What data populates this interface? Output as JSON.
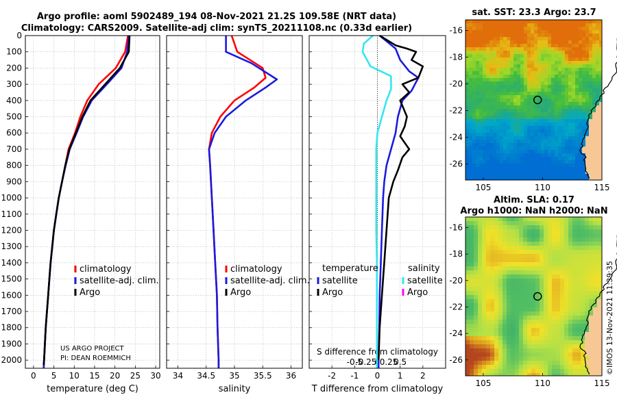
{
  "header": {
    "line1": "Argo profile: aoml 5902489_194 08-Nov-2021 21.2S 109.58E (NRT data)",
    "line2": "Climatology: CARS2009. Satellite-adj clim: synTS_20211108.nc (0.33d earlier)"
  },
  "depth_ticks": [
    0,
    100,
    200,
    300,
    400,
    500,
    600,
    700,
    800,
    900,
    1000,
    1100,
    1200,
    1300,
    1400,
    1500,
    1600,
    1700,
    1800,
    1900,
    2000
  ],
  "chart_data": [
    {
      "type": "line",
      "id": "temperature",
      "xlabel": "temperature (deg C)",
      "ylabel": "depth",
      "xlim": [
        -2,
        31
      ],
      "ylim": [
        2050,
        0
      ],
      "xticks": [
        0,
        5,
        10,
        15,
        20,
        25,
        30
      ],
      "grid": true,
      "legend": "middle-right",
      "series": [
        {
          "name": "climatology",
          "color": "#ff0000",
          "points": [
            [
              23.2,
              0
            ],
            [
              22.5,
              100
            ],
            [
              20.2,
              200
            ],
            [
              16.0,
              300
            ],
            [
              13.2,
              400
            ],
            [
              11.5,
              500
            ],
            [
              10.2,
              600
            ],
            [
              8.6,
              700
            ],
            [
              7.8,
              800
            ],
            [
              7.0,
              900
            ],
            [
              6.2,
              1000
            ],
            [
              5.6,
              1100
            ],
            [
              5.0,
              1200
            ],
            [
              4.6,
              1300
            ],
            [
              4.2,
              1400
            ],
            [
              3.9,
              1500
            ],
            [
              3.6,
              1600
            ],
            [
              3.3,
              1700
            ],
            [
              3.0,
              1800
            ],
            [
              2.8,
              1900
            ],
            [
              2.6,
              2000
            ],
            [
              2.5,
              2050
            ]
          ]
        },
        {
          "name": "satellite-adj. clim.",
          "color": "#1a1adf",
          "points": [
            [
              23.4,
              0
            ],
            [
              23.0,
              100
            ],
            [
              21.6,
              200
            ],
            [
              18.0,
              300
            ],
            [
              14.3,
              400
            ],
            [
              12.2,
              500
            ],
            [
              10.6,
              600
            ],
            [
              8.9,
              700
            ],
            [
              7.9,
              800
            ],
            [
              7.0,
              900
            ],
            [
              6.2,
              1000
            ],
            [
              5.6,
              1100
            ],
            [
              5.0,
              1200
            ],
            [
              4.6,
              1300
            ],
            [
              4.2,
              1400
            ],
            [
              3.9,
              1500
            ],
            [
              3.6,
              1600
            ],
            [
              3.3,
              1700
            ],
            [
              3.0,
              1800
            ],
            [
              2.8,
              1900
            ],
            [
              2.6,
              2000
            ],
            [
              2.5,
              2050
            ]
          ]
        },
        {
          "name": "Argo",
          "color": "#000000",
          "points": [
            [
              23.6,
              0
            ],
            [
              23.4,
              100
            ],
            [
              21.2,
              200
            ],
            [
              17.6,
              300
            ],
            [
              14.0,
              400
            ],
            [
              12.0,
              500
            ],
            [
              10.4,
              600
            ],
            [
              8.8,
              700
            ],
            [
              7.8,
              800
            ],
            [
              7.0,
              900
            ],
            [
              6.2,
              1000
            ],
            [
              5.6,
              1100
            ],
            [
              5.0,
              1200
            ],
            [
              4.6,
              1300
            ],
            [
              4.2,
              1400
            ],
            [
              3.9,
              1500
            ],
            [
              3.6,
              1600
            ],
            [
              3.3,
              1700
            ],
            [
              3.0,
              1800
            ],
            [
              2.8,
              1900
            ],
            [
              2.6,
              2000
            ],
            [
              2.5,
              2030
            ]
          ]
        }
      ],
      "annotations": [
        "US ARGO PROJECT",
        "PI: DEAN ROEMMICH"
      ]
    },
    {
      "type": "line",
      "id": "salinity",
      "xlabel": "salinity",
      "ylabel": "depth",
      "xlim": [
        33.8,
        36.2
      ],
      "ylim": [
        2050,
        0
      ],
      "xticks": [
        34,
        34.5,
        35,
        35.5,
        36
      ],
      "grid": true,
      "legend": "middle-right",
      "series": [
        {
          "name": "climatology",
          "color": "#ff0000",
          "points": [
            [
              34.95,
              0
            ],
            [
              35.05,
              100
            ],
            [
              35.5,
              200
            ],
            [
              35.55,
              260
            ],
            [
              35.35,
              320
            ],
            [
              35.0,
              400
            ],
            [
              34.75,
              500
            ],
            [
              34.6,
              600
            ],
            [
              34.55,
              700
            ],
            [
              34.57,
              800
            ],
            [
              34.6,
              1000
            ],
            [
              34.63,
              1200
            ],
            [
              34.66,
              1400
            ],
            [
              34.69,
              1600
            ],
            [
              34.7,
              1800
            ],
            [
              34.72,
              2000
            ],
            [
              34.72,
              2050
            ]
          ]
        },
        {
          "name": "satellite-adj. clim.",
          "color": "#1a1adf",
          "points": [
            [
              34.85,
              0
            ],
            [
              34.85,
              100
            ],
            [
              35.3,
              170
            ],
            [
              35.75,
              270
            ],
            [
              35.55,
              320
            ],
            [
              35.2,
              400
            ],
            [
              34.85,
              500
            ],
            [
              34.65,
              600
            ],
            [
              34.55,
              700
            ],
            [
              34.57,
              800
            ],
            [
              34.6,
              1000
            ],
            [
              34.63,
              1200
            ],
            [
              34.66,
              1400
            ],
            [
              34.69,
              1600
            ],
            [
              34.7,
              1800
            ],
            [
              34.72,
              2000
            ],
            [
              34.72,
              2050
            ]
          ]
        },
        {
          "name": "Argo",
          "color": "#000000",
          "points": []
        }
      ]
    },
    {
      "type": "line",
      "id": "differences",
      "xlabel": "T difference from climatology",
      "xlabel_top": "S difference from climatology",
      "ylabel": "depth",
      "xlim": [
        -3,
        3
      ],
      "ylim": [
        2050,
        0
      ],
      "xticks": [
        -2,
        -1,
        0,
        1,
        2
      ],
      "xticks_s": [
        "-0.5",
        "-0.25",
        "0",
        "0.25",
        "0.5"
      ],
      "grid": true,
      "legend": "middle",
      "legend_groups": [
        "temperature",
        "salinity"
      ],
      "series": [
        {
          "name": "temperature satellite",
          "color": "#1a1adf",
          "points": [
            [
              0.1,
              0
            ],
            [
              0.8,
              80
            ],
            [
              1.0,
              150
            ],
            [
              1.4,
              220
            ],
            [
              1.8,
              260
            ],
            [
              1.5,
              340
            ],
            [
              1.1,
              400
            ],
            [
              0.9,
              500
            ],
            [
              0.8,
              600
            ],
            [
              0.6,
              700
            ],
            [
              0.4,
              800
            ],
            [
              0.3,
              900
            ],
            [
              0.25,
              1000
            ],
            [
              0.2,
              1200
            ],
            [
              0.15,
              1400
            ],
            [
              0.1,
              1600
            ],
            [
              0.08,
              1800
            ],
            [
              0.05,
              2000
            ],
            [
              0.05,
              2050
            ]
          ]
        },
        {
          "name": "temperature Argo",
          "color": "#000000",
          "points": [
            [
              0.1,
              0
            ],
            [
              0.8,
              60
            ],
            [
              1.3,
              80
            ],
            [
              1.7,
              100
            ],
            [
              1.5,
              150
            ],
            [
              2.0,
              190
            ],
            [
              1.8,
              260
            ],
            [
              1.1,
              300
            ],
            [
              1.4,
              350
            ],
            [
              1.0,
              400
            ],
            [
              1.3,
              500
            ],
            [
              1.2,
              560
            ],
            [
              1.0,
              620
            ],
            [
              1.4,
              700
            ],
            [
              1.1,
              750
            ],
            [
              0.9,
              830
            ],
            [
              0.7,
              900
            ],
            [
              0.5,
              1000
            ],
            [
              0.4,
              1200
            ],
            [
              0.3,
              1400
            ],
            [
              0.2,
              1600
            ],
            [
              0.1,
              1800
            ],
            [
              0.05,
              2000
            ]
          ]
        },
        {
          "name": "salinity satellite",
          "color": "#33e6ee",
          "points": [
            [
              -0.2,
              0
            ],
            [
              -0.6,
              50
            ],
            [
              -0.65,
              100
            ],
            [
              -0.3,
              190
            ],
            [
              0.6,
              250
            ],
            [
              0.6,
              330
            ],
            [
              0.4,
              400
            ],
            [
              0.2,
              500
            ],
            [
              0.0,
              600
            ],
            [
              -0.05,
              700
            ],
            [
              -0.05,
              800
            ],
            [
              -0.05,
              1000
            ],
            [
              -0.05,
              1200
            ],
            [
              -0.02,
              1400
            ],
            [
              -0.02,
              1600
            ],
            [
              -0.02,
              1800
            ],
            [
              -0.02,
              2000
            ],
            [
              -0.02,
              2050
            ]
          ]
        },
        {
          "name": "salinity Argo",
          "color": "#ff00ff",
          "points": []
        }
      ]
    },
    {
      "type": "heatmap",
      "id": "sst-map",
      "title": "sat. SST: 23.3 Argo: 23.7",
      "xlim": [
        103.5,
        115
      ],
      "ylim": [
        -27.2,
        -15.2
      ],
      "xticks": [
        105,
        110,
        115
      ],
      "yticks": [
        -16,
        -18,
        -20,
        -22,
        -24,
        -26
      ],
      "argo_position": [
        109.58,
        -21.2
      ]
    },
    {
      "type": "heatmap",
      "id": "sla-map",
      "title_line1": "Altim. SLA: 0.17",
      "title_line2": "Argo h1000: NaN h2000: NaN",
      "xlim": [
        103.5,
        115
      ],
      "ylim": [
        -27.2,
        -15.2
      ],
      "xticks": [
        105,
        110,
        115
      ],
      "yticks": [
        -16,
        -18,
        -20,
        -22,
        -24,
        -26
      ],
      "argo_position": [
        109.58,
        -21.2
      ]
    }
  ],
  "legends": {
    "temp": [
      {
        "label": "climatology",
        "color": "#ff0000"
      },
      {
        "label": "satellite-adj. clim.",
        "color": "#1a1adf"
      },
      {
        "label": "Argo",
        "color": "#000000"
      }
    ],
    "sal": [
      {
        "label": "climatology",
        "color": "#ff0000"
      },
      {
        "label": "satellite-adj. clim.",
        "color": "#1a1adf"
      },
      {
        "label": "Argo",
        "color": "#000000"
      }
    ],
    "diff": {
      "temperature_heading": "temperature",
      "salinity_heading": "salinity",
      "temperature": [
        {
          "label": "satellite",
          "color": "#1a1adf"
        },
        {
          "label": "Argo",
          "color": "#000000"
        }
      ],
      "salinity": [
        {
          "label": "satellite",
          "color": "#33e6ee"
        },
        {
          "label": "Argo",
          "color": "#ff00ff"
        }
      ]
    }
  },
  "credit": {
    "project": "US ARGO PROJECT",
    "pi": "PI: DEAN ROEMMICH"
  },
  "watermark": "©IMOS 13-Nov-2021 11:39:35"
}
